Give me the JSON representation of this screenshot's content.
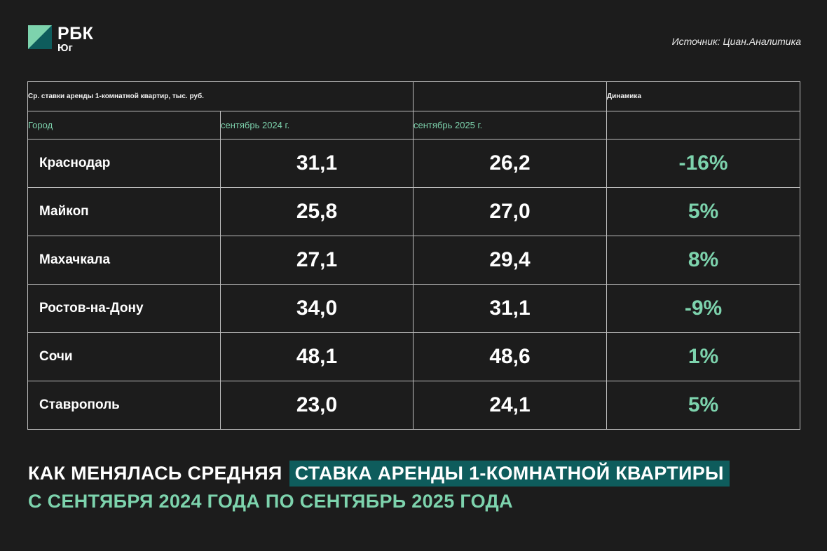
{
  "brand": {
    "main": "РБК",
    "sub": "Юг",
    "colors": {
      "accent_green": "#7dd3ad",
      "dark_teal": "#0e5c5c",
      "background": "#1c1c1c"
    }
  },
  "source": "Источник: Циан.Аналитика",
  "table": {
    "header_note": "Ср. ставки аренды 1-комнатной квартир, тыс. руб.",
    "header_dynamics": "Динамика",
    "columns": [
      "Город",
      "сентябрь 2024 г.",
      "сентябрь 2025 г.",
      ""
    ],
    "rows": [
      {
        "city": "Краснодар",
        "v2024": "31,1",
        "v2025": "26,2",
        "dyn": "-16%"
      },
      {
        "city": "Майкоп",
        "v2024": "25,8",
        "v2025": "27,0",
        "dyn": "5%"
      },
      {
        "city": "Махачкала",
        "v2024": "27,1",
        "v2025": "29,4",
        "dyn": "8%"
      },
      {
        "city": "Ростов-на-Дону",
        "v2024": "34,0",
        "v2025": "31,1",
        "dyn": "-9%"
      },
      {
        "city": "Сочи",
        "v2024": "48,1",
        "v2025": "48,6",
        "dyn": "1%"
      },
      {
        "city": "Ставрополь",
        "v2024": "23,0",
        "v2025": "24,1",
        "dyn": "5%"
      }
    ]
  },
  "headline": {
    "part1": "КАК МЕНЯЛАСЬ СРЕДНЯЯ",
    "part2": "СТАВКА АРЕНДЫ 1-КОМНАТНОЙ КВАРТИРЫ",
    "line2": "С СЕНТЯБРЯ 2024 ГОДА ПО СЕНТЯБРЬ 2025 ГОДА"
  }
}
